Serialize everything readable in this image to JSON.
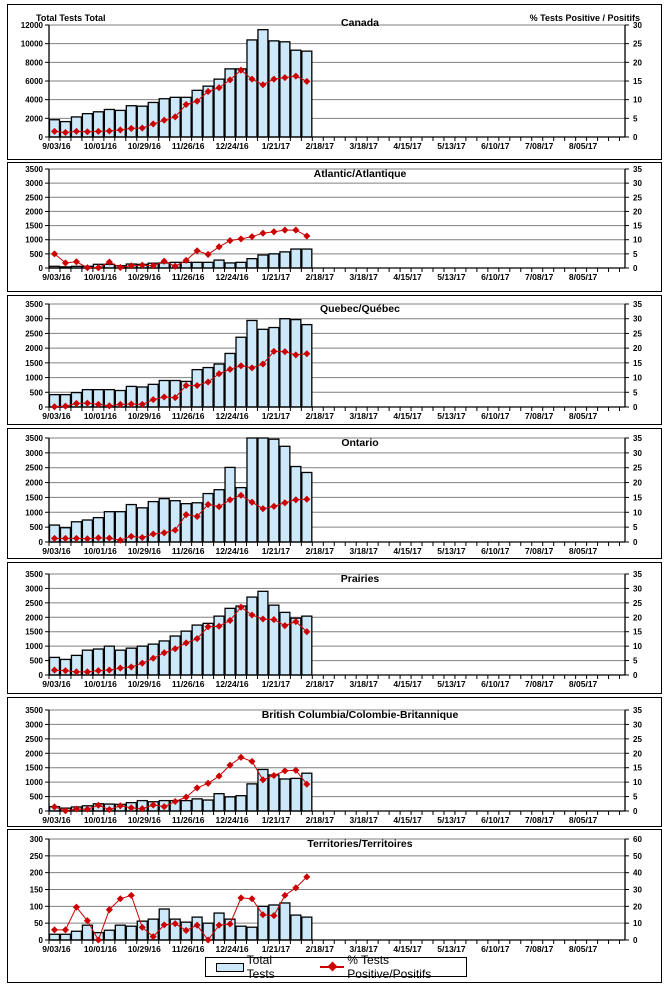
{
  "figure": {
    "left_axis_title": "Total Tests Total",
    "right_axis_title": "% Tests Positive / Positifs",
    "legend": {
      "bars_label": "Total Tests",
      "line_label": "% Tests Positive/Positifs",
      "bar_fill": "#cce8f9",
      "line_color": "#cc0000"
    }
  },
  "chart_data": [
    {
      "type": "bar",
      "title": "Canada",
      "ylabel": "Total Tests Total",
      "y2label": "% Tests Positive / Positifs",
      "ylim": [
        0,
        12000
      ],
      "yticks": [
        0,
        2000,
        4000,
        6000,
        8000,
        10000,
        12000
      ],
      "y2lim": [
        0,
        30
      ],
      "y2ticks": [
        0,
        5,
        10,
        15,
        20,
        25,
        30
      ],
      "xtick_labels": [
        "9/03/16",
        "10/01/16",
        "10/29/16",
        "11/26/16",
        "12/24/16",
        "1/21/17",
        "2/18/17",
        "3/18/17",
        "4/15/17",
        "5/13/17",
        "6/10/17",
        "7/08/17",
        "8/05/17"
      ],
      "grid": true,
      "series": [
        {
          "name": "Total Tests",
          "type": "bar",
          "axis": "left",
          "values": [
            1850,
            1650,
            2150,
            2500,
            2700,
            2950,
            2850,
            3350,
            3300,
            3700,
            4100,
            4250,
            4250,
            5000,
            5450,
            6200,
            7300,
            7300,
            10400,
            11500,
            10300,
            10200,
            9300,
            9200
          ]
        },
        {
          "name": "% Tests Positive/Positifs",
          "type": "line",
          "axis": "right",
          "values": [
            1.5,
            1.2,
            1.5,
            1.4,
            1.5,
            1.6,
            1.9,
            2.3,
            2.4,
            3.5,
            4.5,
            5.4,
            8.7,
            9.6,
            12.2,
            13.2,
            15.3,
            17.9,
            15.5,
            14.0,
            15.5,
            15.9,
            16.3,
            14.9
          ]
        }
      ]
    },
    {
      "type": "bar",
      "title": "Atlantic/Atlantique",
      "ylim": [
        0,
        3500
      ],
      "yticks": [
        0,
        500,
        1000,
        1500,
        2000,
        2500,
        3000,
        3500
      ],
      "y2lim": [
        0,
        35
      ],
      "y2ticks": [
        0,
        5,
        10,
        15,
        20,
        25,
        30,
        35
      ],
      "xtick_labels": [
        "9/03/16",
        "10/01/16",
        "10/29/16",
        "11/26/16",
        "12/24/16",
        "1/21/17",
        "2/18/17",
        "3/18/17",
        "4/15/17",
        "5/13/17",
        "6/10/17",
        "7/08/17",
        "8/05/17"
      ],
      "grid": true,
      "series": [
        {
          "name": "Total Tests",
          "type": "bar",
          "axis": "left",
          "values": [
            60,
            40,
            60,
            60,
            130,
            130,
            80,
            140,
            130,
            170,
            180,
            200,
            200,
            200,
            200,
            280,
            180,
            200,
            330,
            460,
            500,
            570,
            670,
            670
          ]
        },
        {
          "name": "% Tests Positive/Positifs",
          "type": "line",
          "axis": "right",
          "values": [
            5.0,
            1.8,
            2.2,
            0.1,
            0.1,
            2.1,
            0.2,
            0.8,
            1.0,
            0.8,
            2.4,
            0.6,
            2.7,
            6.1,
            4.8,
            7.5,
            9.7,
            10.3,
            11.1,
            12.3,
            12.8,
            13.4,
            13.4,
            11.3
          ]
        }
      ]
    },
    {
      "type": "bar",
      "title": "Quebec/Québec",
      "ylim": [
        0,
        3500
      ],
      "yticks": [
        0,
        500,
        1000,
        1500,
        2000,
        2500,
        3000,
        3500
      ],
      "y2lim": [
        0,
        35
      ],
      "y2ticks": [
        0,
        5,
        10,
        15,
        20,
        25,
        30,
        35
      ],
      "xtick_labels": [
        "9/03/16",
        "10/01/16",
        "10/29/16",
        "11/26/16",
        "12/24/16",
        "1/21/17",
        "2/18/17",
        "3/18/17",
        "4/15/17",
        "5/13/17",
        "6/10/17",
        "7/08/17",
        "8/05/17"
      ],
      "grid": true,
      "series": [
        {
          "name": "Total Tests",
          "type": "bar",
          "axis": "left",
          "values": [
            420,
            420,
            490,
            590,
            590,
            590,
            560,
            700,
            680,
            770,
            900,
            900,
            870,
            1270,
            1340,
            1460,
            1820,
            2370,
            2940,
            2640,
            2700,
            3000,
            2970,
            2800
          ]
        },
        {
          "name": "% Tests Positive/Positifs",
          "type": "line",
          "axis": "right",
          "values": [
            0.1,
            0.3,
            1.2,
            1.3,
            0.9,
            0.4,
            0.9,
            1.0,
            0.9,
            2.5,
            3.4,
            3.2,
            7.3,
            7.3,
            8.5,
            11.3,
            12.8,
            14.0,
            13.3,
            14.6,
            18.9,
            18.8,
            17.7,
            18.1
          ]
        }
      ]
    },
    {
      "type": "bar",
      "title": "Ontario",
      "ylim": [
        0,
        3500
      ],
      "yticks": [
        0,
        500,
        1000,
        1500,
        2000,
        2500,
        3000,
        3500
      ],
      "y2lim": [
        0,
        35
      ],
      "y2ticks": [
        0,
        5,
        10,
        15,
        20,
        25,
        30,
        35
      ],
      "xtick_labels": [
        "9/03/16",
        "10/01/16",
        "10/29/16",
        "11/26/16",
        "12/24/16",
        "1/21/17",
        "2/18/17",
        "3/18/17",
        "4/15/17",
        "5/13/17",
        "6/10/17",
        "7/08/17",
        "8/05/17"
      ],
      "grid": true,
      "series": [
        {
          "name": "Total Tests",
          "type": "bar",
          "axis": "left",
          "values": [
            570,
            480,
            680,
            740,
            820,
            1020,
            1020,
            1260,
            1150,
            1360,
            1460,
            1390,
            1290,
            1320,
            1630,
            1760,
            2510,
            1830,
            3500,
            3500,
            3460,
            3220,
            2540,
            2340
          ]
        },
        {
          "name": "% Tests Positive/Positifs",
          "type": "line",
          "axis": "right",
          "values": [
            1.2,
            1.2,
            1.2,
            1.1,
            1.4,
            1.3,
            0.6,
            1.9,
            1.5,
            2.7,
            3.1,
            4.0,
            9.2,
            8.6,
            12.6,
            11.9,
            14.2,
            15.7,
            13.4,
            11.2,
            12.0,
            13.2,
            14.2,
            14.4
          ]
        }
      ]
    },
    {
      "type": "bar",
      "title": "Prairies",
      "ylim": [
        0,
        3500
      ],
      "yticks": [
        0,
        500,
        1000,
        1500,
        2000,
        2500,
        3000,
        3500
      ],
      "y2lim": [
        0,
        35
      ],
      "y2ticks": [
        0,
        5,
        10,
        15,
        20,
        25,
        30,
        35
      ],
      "xtick_labels": [
        "9/03/16",
        "10/01/16",
        "10/29/16",
        "11/26/16",
        "12/24/16",
        "1/21/17",
        "2/18/17",
        "3/18/17",
        "4/15/17",
        "5/13/17",
        "6/10/17",
        "7/08/17",
        "8/05/17"
      ],
      "grid": true,
      "series": [
        {
          "name": "Total Tests",
          "type": "bar",
          "axis": "left",
          "values": [
            610,
            540,
            680,
            860,
            900,
            1000,
            860,
            930,
            1000,
            1070,
            1180,
            1350,
            1520,
            1730,
            1790,
            2040,
            2310,
            2390,
            2700,
            2900,
            2420,
            2170,
            1970,
            2040
          ]
        },
        {
          "name": "% Tests Positive/Positifs",
          "type": "line",
          "axis": "right",
          "values": [
            1.7,
            1.5,
            1.1,
            1.1,
            1.5,
            1.7,
            2.4,
            2.8,
            4.1,
            5.8,
            7.7,
            9.1,
            11.1,
            12.6,
            16.7,
            16.9,
            18.9,
            23.5,
            20.8,
            19.4,
            19.2,
            17.1,
            18.5,
            15.0
          ]
        }
      ]
    },
    {
      "type": "bar",
      "title": "British Columbia/Colombie-Britannique",
      "ylim": [
        0,
        3500
      ],
      "yticks": [
        0,
        500,
        1000,
        1500,
        2000,
        2500,
        3000,
        3500
      ],
      "y2lim": [
        0,
        35
      ],
      "y2ticks": [
        0,
        5,
        10,
        15,
        20,
        25,
        30,
        35
      ],
      "xtick_labels": [
        "9/03/16",
        "10/01/16",
        "10/29/16",
        "11/26/16",
        "12/24/16",
        "1/21/17",
        "2/18/17",
        "3/18/17",
        "4/15/17",
        "5/13/17",
        "6/10/17",
        "7/08/17",
        "8/05/17"
      ],
      "grid": true,
      "series": [
        {
          "name": "Total Tests",
          "type": "bar",
          "axis": "left",
          "values": [
            150,
            100,
            140,
            180,
            250,
            240,
            230,
            290,
            360,
            320,
            360,
            360,
            360,
            420,
            380,
            600,
            490,
            530,
            940,
            1440,
            1250,
            1110,
            1130,
            1310
          ]
        },
        {
          "name": "% Tests Positive/Positifs",
          "type": "line",
          "axis": "right",
          "values": [
            1.4,
            0.1,
            0.7,
            0.6,
            2.0,
            0.5,
            1.8,
            1.1,
            0.8,
            2.1,
            1.5,
            3.3,
            4.8,
            8.0,
            9.6,
            12.1,
            15.9,
            18.6,
            17.2,
            10.8,
            12.3,
            13.9,
            14.1,
            9.3
          ]
        }
      ]
    },
    {
      "type": "bar",
      "title": "Territories/Territoires",
      "ylim": [
        0,
        300
      ],
      "yticks": [
        0,
        50,
        100,
        150,
        200,
        250,
        300
      ],
      "y2lim": [
        0,
        60
      ],
      "y2ticks": [
        0,
        10,
        20,
        30,
        40,
        50,
        60
      ],
      "xtick_labels": [
        "9/03/16",
        "10/01/16",
        "10/29/16",
        "11/26/16",
        "12/24/16",
        "1/21/17",
        "2/18/17",
        "3/18/17",
        "4/15/17",
        "5/13/17",
        "6/10/17",
        "7/08/17",
        "8/05/17"
      ],
      "grid": true,
      "legend": "bottom-center",
      "series": [
        {
          "name": "Total Tests",
          "type": "bar",
          "axis": "left",
          "values": [
            17,
            17,
            26,
            44,
            22,
            29,
            44,
            41,
            56,
            62,
            92,
            62,
            53,
            68,
            50,
            80,
            62,
            41,
            38,
            100,
            104,
            110,
            74,
            68
          ]
        },
        {
          "name": "% Tests Positive/Positifs",
          "type": "line",
          "axis": "right",
          "values": [
            6,
            6,
            19.5,
            11.5,
            0,
            18,
            24.5,
            26.5,
            7.5,
            2,
            9,
            9.7,
            5.7,
            8.8,
            0,
            8.8,
            9.5,
            25,
            24.5,
            15,
            14.5,
            26.5,
            31,
            37.5
          ]
        }
      ]
    }
  ]
}
